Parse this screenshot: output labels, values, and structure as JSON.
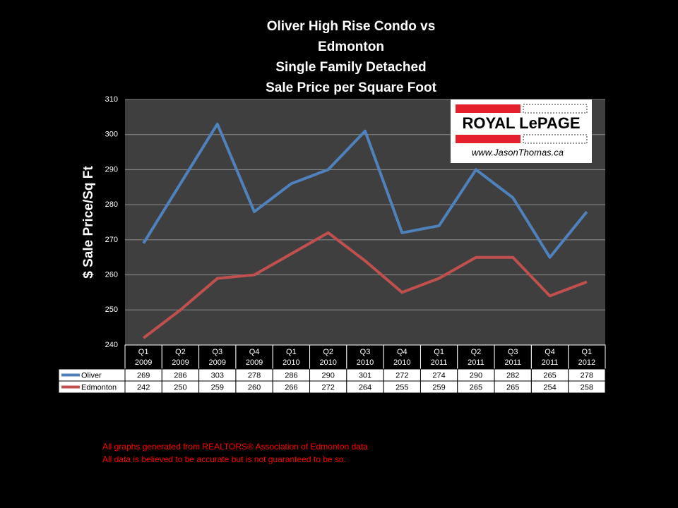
{
  "chart_data": {
    "type": "line",
    "title": [
      "Oliver High Rise Condo vs",
      "Edmonton",
      "Single Family Detached",
      "Sale Price per Square Foot"
    ],
    "y_label": "$ Sale Price/Sq Ft",
    "categories": [
      [
        "Q1",
        "2009"
      ],
      [
        "Q2",
        "2009"
      ],
      [
        "Q3",
        "2009"
      ],
      [
        "Q4",
        "2009"
      ],
      [
        "Q1",
        "2010"
      ],
      [
        "Q2",
        "2010"
      ],
      [
        "Q3",
        "2010"
      ],
      [
        "Q4",
        "2010"
      ],
      [
        "Q1",
        "2011"
      ],
      [
        "Q2",
        "2011"
      ],
      [
        "Q3",
        "2011"
      ],
      [
        "Q4",
        "2011"
      ],
      [
        "Q1",
        "2012"
      ]
    ],
    "series": [
      {
        "name": "Oliver",
        "color": "#4f81bd",
        "values": [
          269,
          286,
          303,
          278,
          286,
          290,
          301,
          272,
          274,
          290,
          282,
          265,
          278
        ]
      },
      {
        "name": "Edmonton",
        "color": "#c0504d",
        "values": [
          242,
          250,
          259,
          260,
          266,
          272,
          264,
          255,
          259,
          265,
          265,
          254,
          258
        ]
      }
    ],
    "ylim": [
      240,
      310
    ],
    "yticks": [
      240,
      250,
      260,
      270,
      280,
      290,
      300,
      310
    ],
    "grid": true,
    "logo": {
      "brand": "ROYAL LePAGE",
      "website": "www.JasonThomas.ca"
    },
    "footnotes": [
      "All graphs generated from REALTORS® Association of Edmonton data",
      "All data is believed to be accurate but is not guaranteed to be so."
    ]
  }
}
